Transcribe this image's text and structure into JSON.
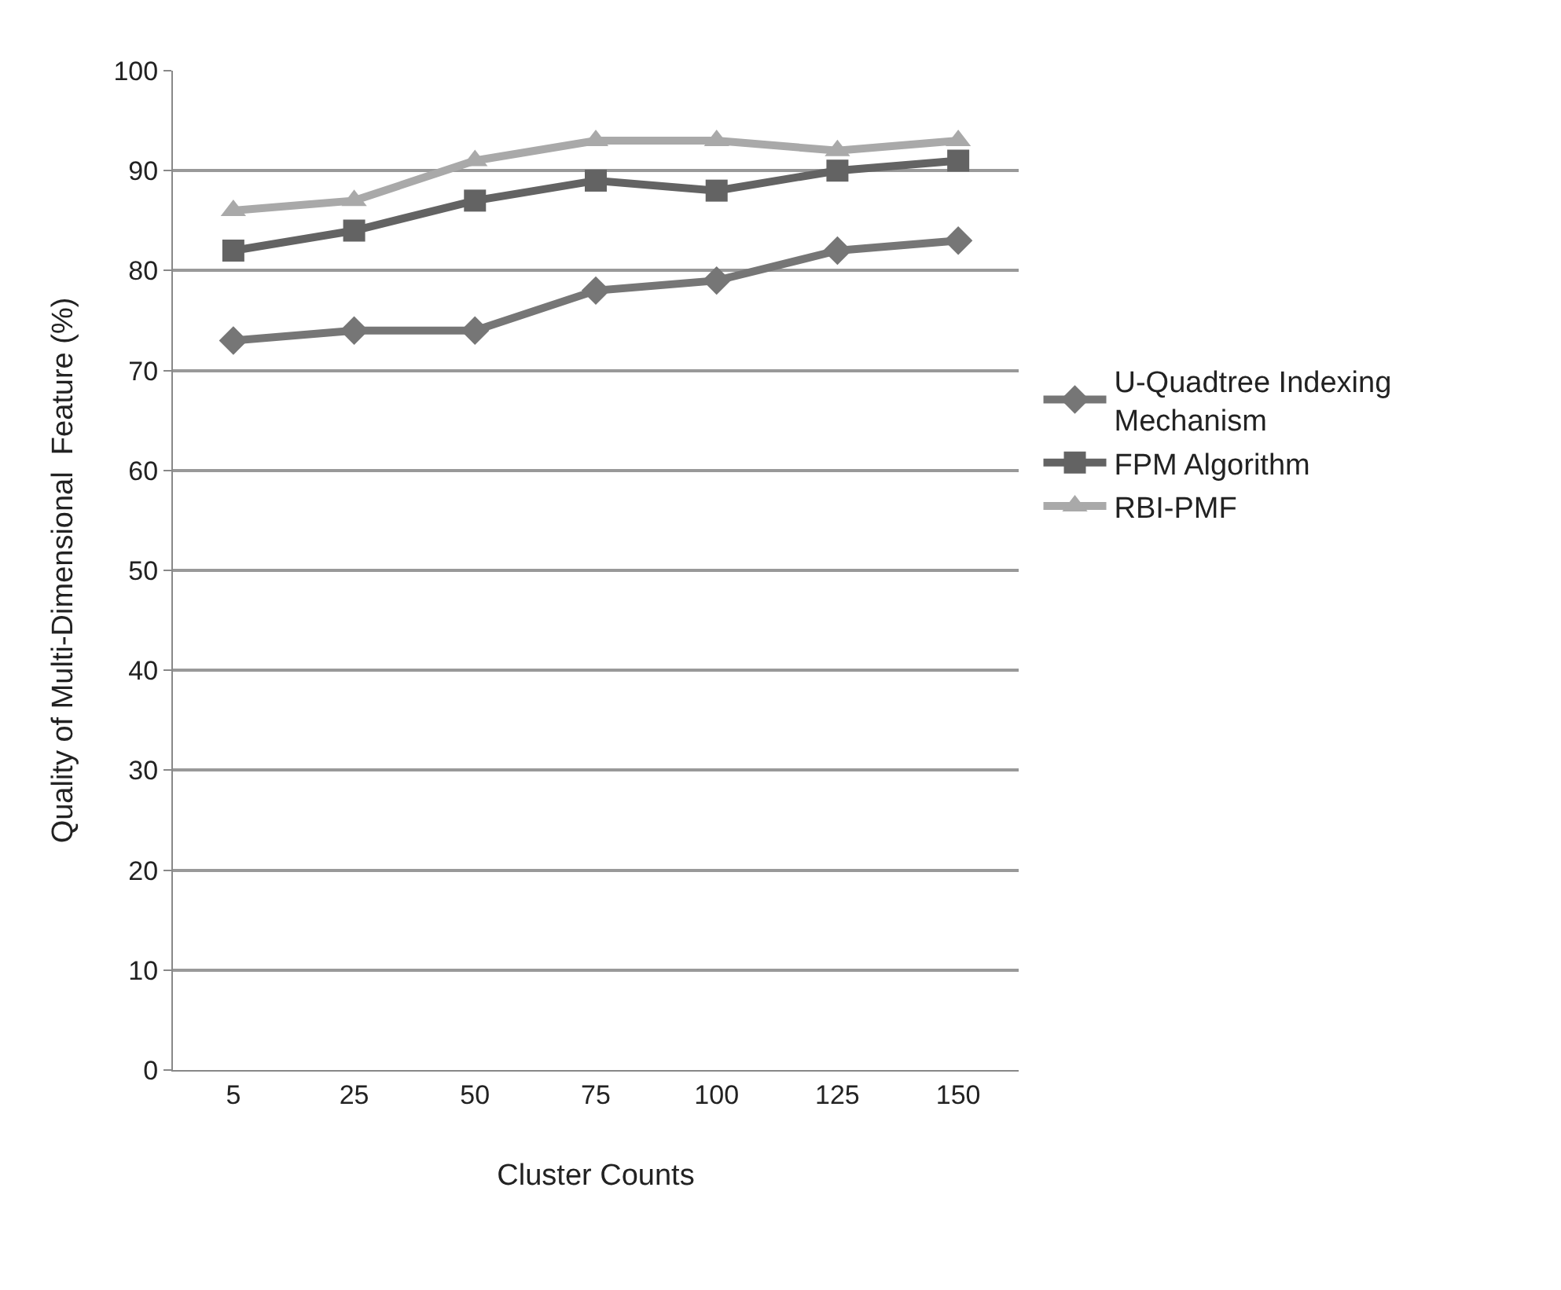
{
  "chart_data": {
    "type": "line",
    "xlabel": "Cluster Counts",
    "ylabel": "Quality of Multi-Dimensional  Feature (%)",
    "categories": [
      "5",
      "25",
      "50",
      "75",
      "100",
      "125",
      "150"
    ],
    "series": [
      {
        "name": "U-Quadtree Indexing Mechanism",
        "color": "#767676",
        "marker": "diamond",
        "values": [
          73,
          74,
          74,
          78,
          79,
          82,
          83
        ]
      },
      {
        "name": "FPM Algorithm",
        "color": "#636363",
        "marker": "square",
        "values": [
          82,
          84,
          87,
          89,
          88,
          90,
          91
        ]
      },
      {
        "name": "RBI-PMF",
        "color": "#a9a9a9",
        "marker": "triangle",
        "values": [
          86,
          87,
          91,
          93,
          93,
          92,
          93
        ]
      }
    ],
    "ylim": [
      0,
      100
    ],
    "yticks": [
      0,
      10,
      20,
      30,
      40,
      50,
      60,
      70,
      80,
      90,
      100
    ],
    "grid": "y",
    "legend": "right",
    "line_style": "solid"
  }
}
